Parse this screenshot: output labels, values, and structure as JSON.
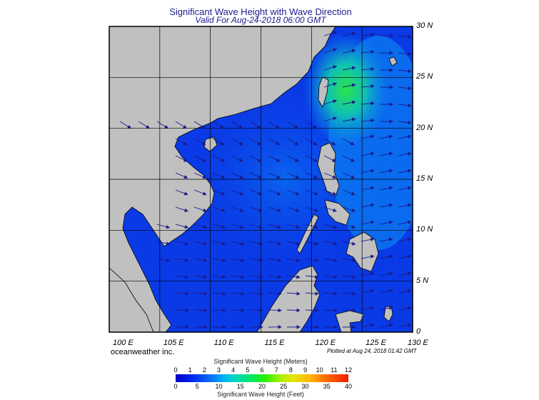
{
  "title": "Significant Wave Height with Wave Direction",
  "subtitle": "Valid For Aug-24-2018 06:00 GMT",
  "map": {
    "lon_range": [
      100,
      130
    ],
    "lat_range": [
      0,
      30
    ],
    "lat_labels": [
      "30 N",
      "25 N",
      "20 N",
      "15 N",
      "10 N",
      "5 N",
      "0"
    ],
    "lon_labels": [
      "100 E",
      "105 E",
      "110 E",
      "115 E",
      "120 E",
      "125 E",
      "130 E"
    ],
    "land_color": "#c0c0c0",
    "deep_color": "#0a3ae6",
    "arrow_color": "#1a1a8c"
  },
  "credit": "oceanweather inc.",
  "plotted": "Plotted at Aug 24, 2018 01:42 GMT",
  "colorbar": {
    "meters_title": "Significant Wave Height (Meters)",
    "feet_title": "Significant Wave Height (Feet)",
    "meters_ticks": [
      "0",
      "1",
      "2",
      "3",
      "4",
      "5",
      "6",
      "7",
      "8",
      "9",
      "10",
      "11",
      "12"
    ],
    "feet_ticks": [
      "0",
      "5",
      "10",
      "15",
      "20",
      "25",
      "30",
      "35",
      "40"
    ]
  }
}
